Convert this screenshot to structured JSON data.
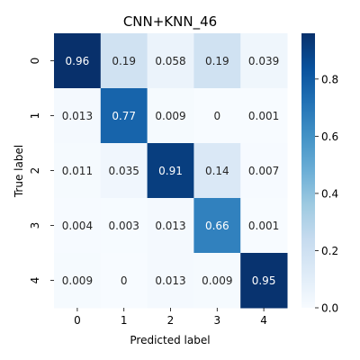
{
  "chart_data": {
    "type": "heatmap",
    "title": "CNN+KNN_46",
    "xlabel": "Predicted label",
    "ylabel": "True label",
    "x_categories": [
      "0",
      "1",
      "2",
      "3",
      "4"
    ],
    "y_categories": [
      "0",
      "1",
      "2",
      "3",
      "4"
    ],
    "cell_labels": [
      [
        "0.96",
        "0.19",
        "0.058",
        "0.19",
        "0.039"
      ],
      [
        "0.013",
        "0.77",
        "0.009",
        "0",
        "0.001"
      ],
      [
        "0.011",
        "0.035",
        "0.91",
        "0.14",
        "0.007"
      ],
      [
        "0.004",
        "0.003",
        "0.013",
        "0.66",
        "0.001"
      ],
      [
        "0.009",
        "0",
        "0.013",
        "0.009",
        "0.95"
      ]
    ],
    "values": [
      [
        0.96,
        0.19,
        0.058,
        0.19,
        0.039
      ],
      [
        0.013,
        0.77,
        0.009,
        0,
        0.001
      ],
      [
        0.011,
        0.035,
        0.91,
        0.14,
        0.007
      ],
      [
        0.004,
        0.003,
        0.013,
        0.66,
        0.001
      ],
      [
        0.009,
        0,
        0.013,
        0.009,
        0.95
      ]
    ],
    "colorscale": "Blues",
    "colorbar": {
      "range": [
        0,
        0.96
      ],
      "ticks": [
        "0.0",
        "0.2",
        "0.4",
        "0.6",
        "0.8"
      ]
    },
    "grid": false
  }
}
